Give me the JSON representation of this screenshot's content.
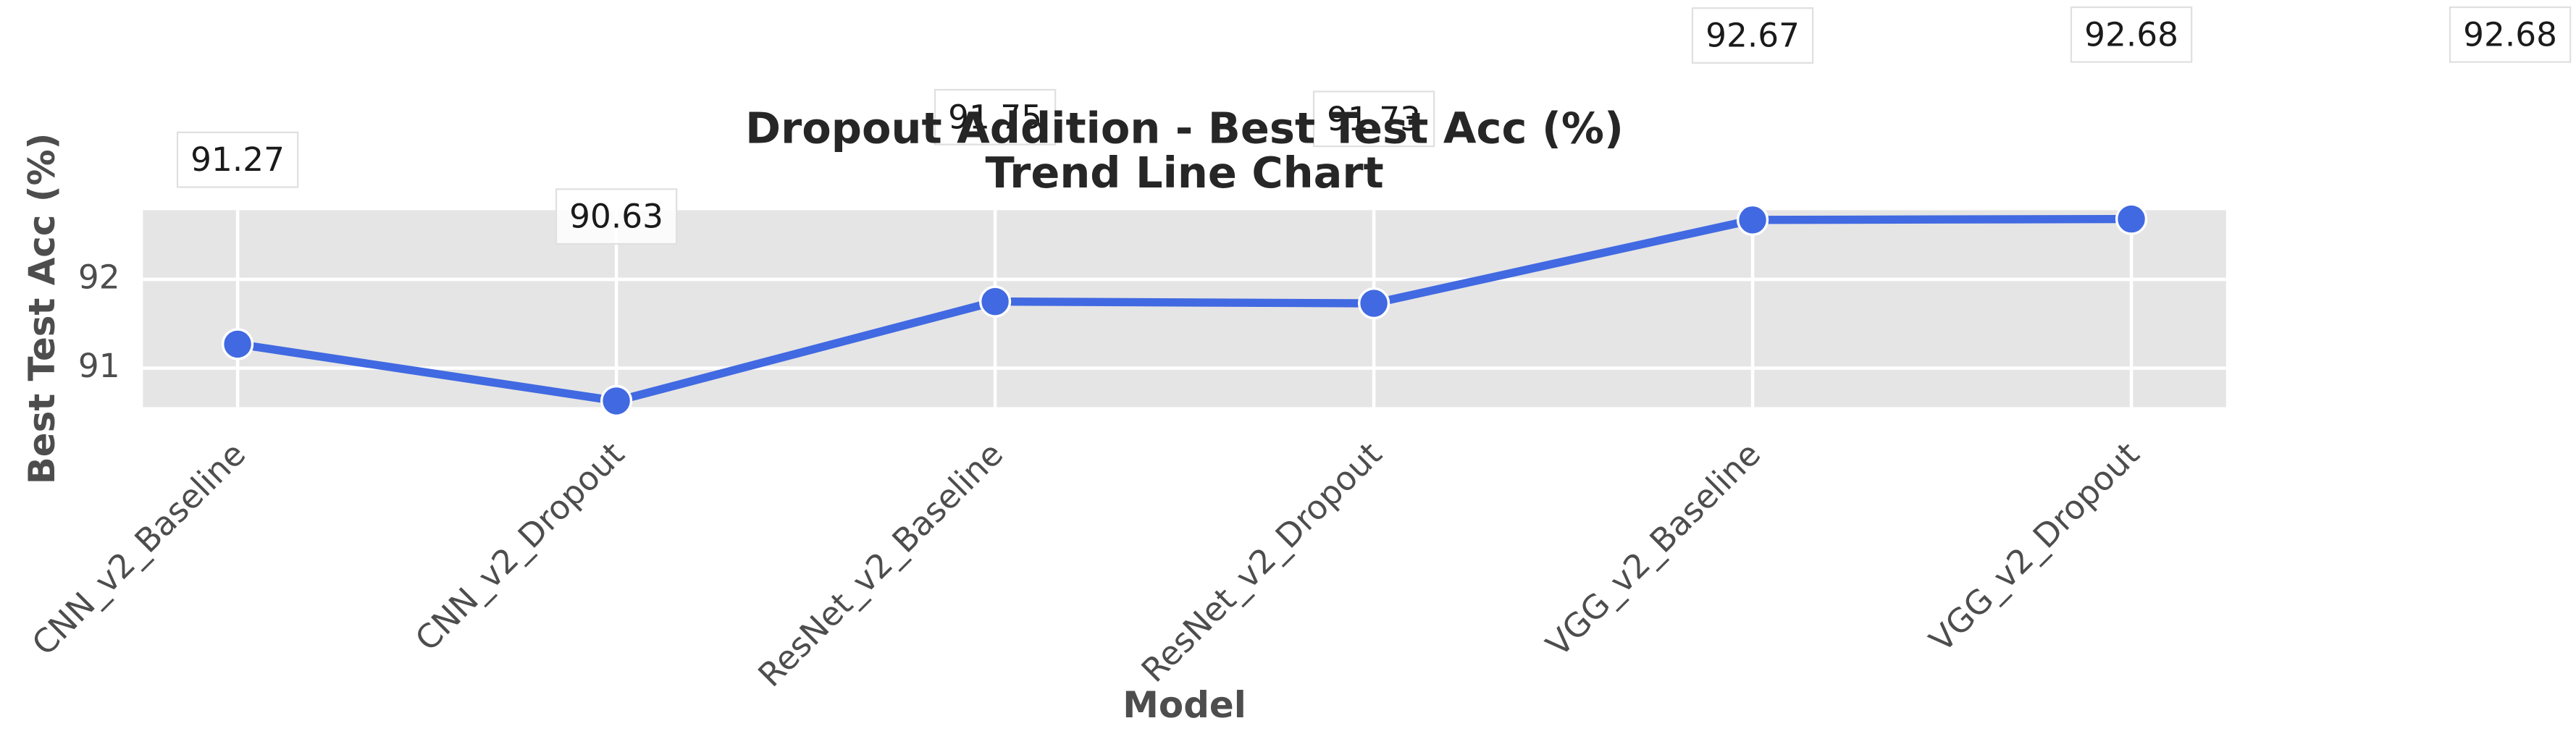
{
  "chart_data": {
    "type": "line",
    "title": "Dropout Addition - Best Test Acc (%)",
    "subtitle": "Trend Line Chart",
    "x_label": "Model",
    "y_label": "Best Test Acc (%)",
    "categories": [
      "CNN_v2_Baseline",
      "CNN_v2_Dropout",
      "ResNet_v2_Baseline",
      "ResNet_v2_Dropout",
      "VGG_v2_Baseline",
      "VGG_v2_Dropout"
    ],
    "series": [
      {
        "name": "Best Test Acc (%)",
        "color": "#4169e1",
        "values": [
          91.27,
          90.63,
          91.75,
          91.73,
          92.67,
          92.68
        ]
      }
    ],
    "annotations": [
      "92.68"
    ],
    "ylim": [
      90.56,
      92.78
    ],
    "yticks": [
      91,
      92
    ],
    "grid": true
  }
}
